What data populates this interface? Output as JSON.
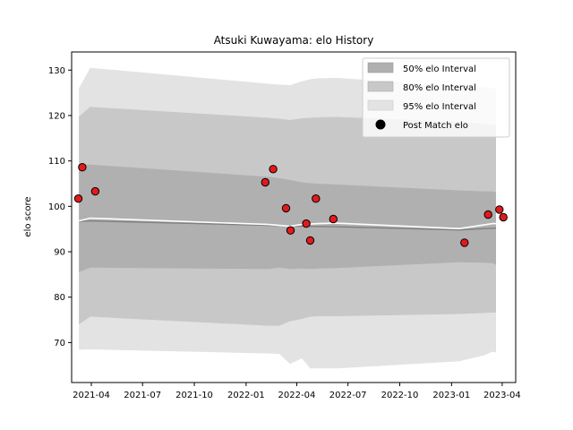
{
  "chart_data": {
    "type": "line",
    "title": "Atsuki Kuwayama: elo History",
    "xlabel": "",
    "ylabel": "elo score",
    "x_range": [
      "2021-02-25",
      "2023-04-25"
    ],
    "ylim": [
      61.2,
      134
    ],
    "x_ticks": [
      "2021-04",
      "2021-07",
      "2021-10",
      "2022-01",
      "2022-04",
      "2022-07",
      "2022-10",
      "2023-01",
      "2023-04"
    ],
    "y_ticks": [
      70,
      80,
      90,
      100,
      110,
      120,
      130
    ],
    "grid": false,
    "legend_position": "top-right",
    "legend": [
      "50% elo Interval",
      "80% elo Interval",
      "95% elo Interval",
      "Post Match elo"
    ],
    "colors": {
      "band_50": "#b0b0b0",
      "band_80": "#c8c8c8",
      "band_95": "#e3e3e3",
      "mean_line": "#808080",
      "median_line": "#ffffff",
      "points_fill": "#e31a1c",
      "points_edge": "#000000"
    },
    "bands": {
      "dates": [
        "2021-03-10",
        "2021-03-30",
        "2022-02-10",
        "2022-03-01",
        "2022-03-20",
        "2022-04-10",
        "2022-04-25",
        "2022-05-10",
        "2022-06-10",
        "2023-01-15",
        "2023-02-28",
        "2023-03-15",
        "2023-03-21"
      ],
      "band_95": {
        "upper": [
          126,
          130.5,
          127,
          126.8,
          126.7,
          127.5,
          128,
          128.2,
          128.3,
          126.5,
          126.2,
          126,
          125.8
        ],
        "lower": [
          68.4,
          68.5,
          67.6,
          67.5,
          65.3,
          66.5,
          64.3,
          64.3,
          64.3,
          65.9,
          67.2,
          68,
          67.8
        ]
      },
      "band_80": {
        "upper": [
          119.8,
          121.9,
          119.5,
          119.3,
          119,
          119.4,
          119.5,
          119.6,
          119.7,
          118.6,
          118.2,
          118,
          117.8
        ],
        "lower": [
          74,
          75.7,
          73.7,
          73.7,
          74.7,
          75.2,
          75.7,
          75.8,
          75.8,
          76.3,
          76.5,
          76.6,
          76.6
        ]
      },
      "band_50": {
        "upper": [
          109.1,
          109.2,
          106.5,
          106.2,
          105.8,
          105.3,
          105.1,
          105,
          104.8,
          103.5,
          103.3,
          103.3,
          103.1
        ],
        "lower": [
          85.5,
          86.5,
          86.2,
          86.5,
          86.2,
          86.3,
          86.2,
          86.3,
          86.4,
          87.7,
          87.6,
          87.5,
          87.1
        ]
      }
    },
    "series": [
      {
        "name": "mean",
        "dates": [
          "2021-03-10",
          "2021-03-30",
          "2022-02-10",
          "2022-04-10",
          "2022-06-10",
          "2023-01-15",
          "2023-03-15",
          "2023-03-21"
        ],
        "values": [
          96.7,
          96.8,
          95.8,
          95.6,
          95.5,
          94.8,
          95.2,
          95.2
        ]
      },
      {
        "name": "median",
        "dates": [
          "2021-03-10",
          "2021-03-30",
          "2022-02-10",
          "2022-03-20",
          "2022-04-10",
          "2022-05-10",
          "2022-06-10",
          "2023-01-15",
          "2023-03-15",
          "2023-03-21"
        ],
        "values": [
          96.8,
          97.4,
          96.0,
          95.6,
          96.0,
          96.2,
          96.3,
          95.1,
          96.2,
          96.2
        ]
      }
    ],
    "points": {
      "name": "Post Match elo",
      "dates": [
        "2021-03-09",
        "2021-03-16",
        "2021-04-08",
        "2022-02-04",
        "2022-02-18",
        "2022-03-13",
        "2022-03-21",
        "2022-04-18",
        "2022-04-25",
        "2022-05-05",
        "2022-06-05",
        "2023-01-24",
        "2023-03-07",
        "2023-03-27",
        "2023-04-03"
      ],
      "values": [
        101.7,
        108.6,
        103.3,
        105.3,
        108.2,
        99.6,
        94.7,
        96.2,
        92.5,
        101.7,
        97.2,
        92.0,
        98.2,
        99.3,
        97.6
      ]
    }
  }
}
